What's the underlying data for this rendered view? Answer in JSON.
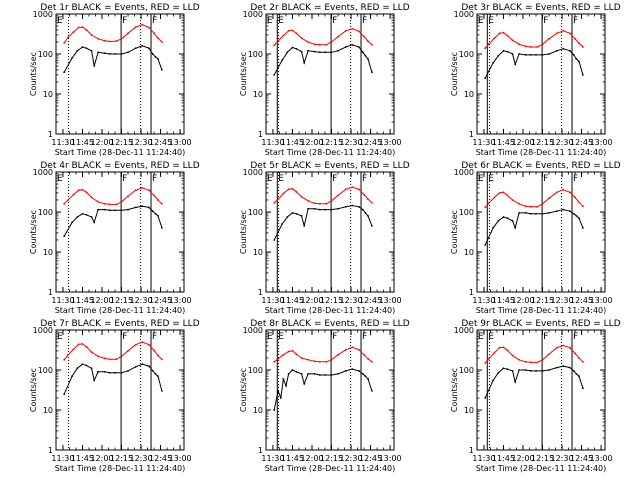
{
  "shared": {
    "xlabel": "Start Time (28-Dec-11 11:24:40)",
    "ylabel": "Counts/sec",
    "x_ticks": [
      "11:30",
      "11:45",
      "12:00",
      "12:15",
      "12:30",
      "12:45",
      "13:00"
    ],
    "y_ticks": [
      "1",
      "10",
      "100",
      "1000"
    ],
    "colors": {
      "events": "#000000",
      "lld": "#ff0000"
    }
  },
  "chart_data": [
    {
      "type": "line",
      "title": "Det 1r BLACK = Events, RED = LLD",
      "xlim": [
        "11:24:40",
        "13:03:00"
      ],
      "ylim": [
        1,
        1000
      ],
      "yscale": "log",
      "flags": [
        "E",
        "F",
        "F",
        "E"
      ],
      "series": [
        {
          "name": "Events",
          "x": [
            "11:31",
            "11:37",
            "11:41",
            "11:45",
            "11:48",
            "11:52",
            "11:54",
            "11:57",
            "12:02",
            "12:06",
            "12:10",
            "12:15",
            "12:20",
            "12:26",
            "12:31",
            "12:36",
            "12:39",
            "12:41",
            "12:43",
            "12:46"
          ],
          "values": [
            35,
            80,
            120,
            150,
            140,
            120,
            50,
            110,
            105,
            100,
            100,
            100,
            110,
            140,
            160,
            140,
            100,
            85,
            75,
            40
          ]
        },
        {
          "name": "LLD",
          "x": [
            "11:31",
            "11:34",
            "11:38",
            "11:42",
            "11:45",
            "11:48",
            "11:52",
            "11:57",
            "12:02",
            "12:06",
            "12:11",
            "12:15",
            "12:20",
            "12:26",
            "12:31",
            "12:36",
            "12:40",
            "12:43",
            "12:46"
          ],
          "values": [
            190,
            260,
            350,
            460,
            470,
            400,
            300,
            240,
            215,
            205,
            210,
            240,
            330,
            470,
            540,
            460,
            330,
            250,
            200
          ]
        }
      ]
    },
    {
      "type": "line",
      "title": "Det 2r BLACK = Events, RED = LLD",
      "xlim": [
        "11:24:40",
        "13:03:00"
      ],
      "ylim": [
        1,
        1000
      ],
      "yscale": "log",
      "flags": [
        "E",
        "F",
        "F",
        "E"
      ],
      "series": [
        {
          "name": "Events",
          "x": [
            "11:31",
            "11:37",
            "11:41",
            "11:45",
            "11:48",
            "11:52",
            "11:54",
            "11:57",
            "12:02",
            "12:06",
            "12:10",
            "12:15",
            "12:20",
            "12:26",
            "12:31",
            "12:36",
            "12:39",
            "12:41",
            "12:43",
            "12:46"
          ],
          "values": [
            30,
            70,
            110,
            145,
            135,
            115,
            60,
            120,
            115,
            110,
            110,
            110,
            120,
            150,
            170,
            150,
            110,
            90,
            75,
            35
          ]
        },
        {
          "name": "LLD",
          "x": [
            "11:31",
            "11:34",
            "11:38",
            "11:42",
            "11:45",
            "11:48",
            "11:52",
            "11:57",
            "12:02",
            "12:06",
            "12:11",
            "12:15",
            "12:20",
            "12:26",
            "12:31",
            "12:36",
            "12:40",
            "12:43",
            "12:46"
          ],
          "values": [
            165,
            210,
            290,
            380,
            390,
            330,
            250,
            200,
            175,
            170,
            170,
            200,
            270,
            380,
            430,
            370,
            270,
            210,
            170
          ]
        }
      ]
    },
    {
      "type": "line",
      "title": "Det 3r BLACK = Events, RED = LLD",
      "xlim": [
        "11:24:40",
        "13:03:00"
      ],
      "ylim": [
        1,
        1000
      ],
      "yscale": "log",
      "flags": [
        "E",
        "F",
        "F",
        "E"
      ],
      "series": [
        {
          "name": "Events",
          "x": [
            "11:31",
            "11:37",
            "11:41",
            "11:45",
            "11:48",
            "11:52",
            "11:54",
            "11:57",
            "12:02",
            "12:06",
            "12:10",
            "12:15",
            "12:20",
            "12:26",
            "12:31",
            "12:36",
            "12:39",
            "12:41",
            "12:43",
            "12:46"
          ],
          "values": [
            25,
            60,
            90,
            120,
            115,
            100,
            55,
            100,
            95,
            95,
            95,
            95,
            100,
            120,
            135,
            120,
            95,
            75,
            65,
            30
          ]
        },
        {
          "name": "LLD",
          "x": [
            "11:31",
            "11:34",
            "11:38",
            "11:42",
            "11:45",
            "11:48",
            "11:52",
            "11:57",
            "12:02",
            "12:06",
            "12:11",
            "12:15",
            "12:20",
            "12:26",
            "12:31",
            "12:36",
            "12:40",
            "12:43",
            "12:46"
          ],
          "values": [
            140,
            180,
            250,
            330,
            340,
            290,
            220,
            175,
            155,
            150,
            150,
            175,
            240,
            330,
            380,
            330,
            240,
            185,
            150
          ]
        }
      ]
    },
    {
      "type": "line",
      "title": "Det 4r BLACK = Events, RED = LLD",
      "xlim": [
        "11:24:40",
        "13:03:00"
      ],
      "ylim": [
        1,
        1000
      ],
      "yscale": "log",
      "flags": [
        "E",
        "F",
        "F",
        "E"
      ],
      "series": [
        {
          "name": "Events",
          "x": [
            "11:31",
            "11:37",
            "11:41",
            "11:45",
            "11:48",
            "11:52",
            "11:54",
            "11:57",
            "12:02",
            "12:06",
            "12:10",
            "12:15",
            "12:20",
            "12:26",
            "12:31",
            "12:36",
            "12:39",
            "12:41",
            "12:43",
            "12:46"
          ],
          "values": [
            25,
            55,
            75,
            90,
            85,
            75,
            55,
            115,
            115,
            110,
            110,
            110,
            115,
            130,
            140,
            130,
            105,
            90,
            80,
            40
          ]
        },
        {
          "name": "LLD",
          "x": [
            "11:31",
            "11:34",
            "11:38",
            "11:42",
            "11:45",
            "11:48",
            "11:52",
            "11:57",
            "12:02",
            "12:06",
            "12:11",
            "12:15",
            "12:20",
            "12:26",
            "12:31",
            "12:36",
            "12:40",
            "12:43",
            "12:46"
          ],
          "values": [
            160,
            200,
            270,
            350,
            360,
            310,
            230,
            180,
            160,
            155,
            155,
            180,
            250,
            350,
            400,
            350,
            260,
            200,
            160
          ]
        }
      ]
    },
    {
      "type": "line",
      "title": "Det 5r BLACK = Events, RED = LLD",
      "xlim": [
        "11:24:40",
        "13:03:00"
      ],
      "ylim": [
        1,
        1000
      ],
      "yscale": "log",
      "flags": [
        "E",
        "F",
        "F",
        "E"
      ],
      "series": [
        {
          "name": "Events",
          "x": [
            "11:31",
            "11:37",
            "11:41",
            "11:45",
            "11:48",
            "11:52",
            "11:54",
            "11:57",
            "12:02",
            "12:06",
            "12:10",
            "12:15",
            "12:20",
            "12:26",
            "12:31",
            "12:36",
            "12:39",
            "12:41",
            "12:43",
            "12:46"
          ],
          "values": [
            20,
            50,
            75,
            95,
            90,
            80,
            45,
            120,
            120,
            115,
            115,
            115,
            120,
            135,
            145,
            135,
            115,
            95,
            80,
            45
          ]
        },
        {
          "name": "LLD",
          "x": [
            "11:31",
            "11:34",
            "11:38",
            "11:42",
            "11:45",
            "11:48",
            "11:52",
            "11:57",
            "12:02",
            "12:06",
            "12:11",
            "12:15",
            "12:20",
            "12:26",
            "12:31",
            "12:36",
            "12:40",
            "12:43",
            "12:46"
          ],
          "values": [
            170,
            210,
            290,
            370,
            380,
            320,
            240,
            190,
            165,
            160,
            160,
            190,
            260,
            370,
            420,
            370,
            270,
            210,
            170
          ]
        }
      ]
    },
    {
      "type": "line",
      "title": "Det 6r BLACK = Events, RED = LLD",
      "xlim": [
        "11:24:40",
        "13:03:00"
      ],
      "ylim": [
        1,
        1000
      ],
      "yscale": "log",
      "flags": [
        "E",
        "F",
        "F",
        "E"
      ],
      "series": [
        {
          "name": "Events",
          "x": [
            "11:31",
            "11:37",
            "11:41",
            "11:45",
            "11:48",
            "11:52",
            "11:54",
            "11:57",
            "12:02",
            "12:06",
            "12:10",
            "12:15",
            "12:20",
            "12:26",
            "12:31",
            "12:36",
            "12:39",
            "12:41",
            "12:43",
            "12:46"
          ],
          "values": [
            15,
            40,
            60,
            75,
            70,
            60,
            40,
            95,
            95,
            90,
            90,
            90,
            95,
            105,
            115,
            105,
            90,
            80,
            70,
            40
          ]
        },
        {
          "name": "LLD",
          "x": [
            "11:31",
            "11:34",
            "11:38",
            "11:42",
            "11:45",
            "11:48",
            "11:52",
            "11:57",
            "12:02",
            "12:06",
            "12:11",
            "12:15",
            "12:20",
            "12:26",
            "12:31",
            "12:36",
            "12:40",
            "12:43",
            "12:46"
          ],
          "values": [
            130,
            170,
            230,
            300,
            310,
            260,
            200,
            160,
            140,
            135,
            135,
            160,
            220,
            310,
            360,
            310,
            230,
            175,
            140
          ]
        }
      ]
    },
    {
      "type": "line",
      "title": "Det 7r BLACK = Events, RED = LLD",
      "xlim": [
        "11:24:40",
        "13:03:00"
      ],
      "ylim": [
        1,
        1000
      ],
      "yscale": "log",
      "flags": [
        "E",
        "F",
        "F",
        "E"
      ],
      "series": [
        {
          "name": "Events",
          "x": [
            "11:31",
            "11:37",
            "11:41",
            "11:45",
            "11:48",
            "11:52",
            "11:54",
            "11:57",
            "12:02",
            "12:06",
            "12:10",
            "12:15",
            "12:20",
            "12:26",
            "12:31",
            "12:36",
            "12:39",
            "12:41",
            "12:43",
            "12:46"
          ],
          "values": [
            25,
            70,
            110,
            140,
            130,
            110,
            55,
            90,
            90,
            85,
            85,
            85,
            95,
            120,
            140,
            125,
            95,
            80,
            70,
            30
          ]
        },
        {
          "name": "LLD",
          "x": [
            "11:31",
            "11:34",
            "11:38",
            "11:42",
            "11:45",
            "11:48",
            "11:52",
            "11:57",
            "12:02",
            "12:06",
            "12:11",
            "12:15",
            "12:20",
            "12:26",
            "12:31",
            "12:36",
            "12:40",
            "12:43",
            "12:46"
          ],
          "values": [
            180,
            240,
            330,
            440,
            450,
            380,
            280,
            220,
            195,
            185,
            185,
            220,
            300,
            430,
            500,
            430,
            310,
            230,
            185
          ]
        }
      ]
    },
    {
      "type": "line",
      "title": "Det 8r BLACK = Events, RED = LLD",
      "xlim": [
        "11:24:40",
        "13:03:00"
      ],
      "ylim": [
        1,
        1000
      ],
      "yscale": "log",
      "flags": [
        "E",
        "F",
        "F",
        "E"
      ],
      "series": [
        {
          "name": "Events",
          "x": [
            "11:31",
            "11:34",
            "11:36",
            "11:38",
            "11:40",
            "11:42",
            "11:45",
            "11:48",
            "11:52",
            "11:54",
            "11:57",
            "12:02",
            "12:06",
            "12:10",
            "12:15",
            "12:20",
            "12:26",
            "12:31",
            "12:36",
            "12:39",
            "12:41",
            "12:43",
            "12:46"
          ],
          "values": [
            10,
            30,
            20,
            60,
            40,
            80,
            100,
            90,
            80,
            45,
            80,
            80,
            75,
            75,
            75,
            80,
            95,
            105,
            95,
            80,
            70,
            60,
            30
          ]
        },
        {
          "name": "LLD",
          "x": [
            "11:31",
            "11:34",
            "11:38",
            "11:42",
            "11:45",
            "11:48",
            "11:52",
            "11:57",
            "12:02",
            "12:06",
            "12:11",
            "12:15",
            "12:20",
            "12:26",
            "12:31",
            "12:36",
            "12:40",
            "12:43",
            "12:46"
          ],
          "values": [
            160,
            190,
            240,
            290,
            300,
            250,
            200,
            180,
            165,
            160,
            160,
            180,
            240,
            320,
            370,
            320,
            240,
            190,
            160
          ]
        }
      ]
    },
    {
      "type": "line",
      "title": "Det 9r BLACK = Events, RED = LLD",
      "xlim": [
        "11:24:40",
        "13:03:00"
      ],
      "ylim": [
        1,
        1000
      ],
      "yscale": "log",
      "flags": [
        "E",
        "F",
        "F",
        "E"
      ],
      "series": [
        {
          "name": "Events",
          "x": [
            "11:31",
            "11:37",
            "11:41",
            "11:45",
            "11:48",
            "11:52",
            "11:54",
            "11:57",
            "12:02",
            "12:06",
            "12:10",
            "12:15",
            "12:20",
            "12:26",
            "12:31",
            "12:36",
            "12:39",
            "12:41",
            "12:43",
            "12:46"
          ],
          "values": [
            20,
            55,
            85,
            110,
            105,
            95,
            50,
            100,
            100,
            95,
            95,
            95,
            100,
            115,
            125,
            115,
            95,
            80,
            70,
            35
          ]
        },
        {
          "name": "LLD",
          "x": [
            "11:31",
            "11:34",
            "11:38",
            "11:42",
            "11:45",
            "11:48",
            "11:52",
            "11:57",
            "12:02",
            "12:06",
            "12:11",
            "12:15",
            "12:20",
            "12:26",
            "12:31",
            "12:36",
            "12:40",
            "12:43",
            "12:46"
          ],
          "values": [
            150,
            195,
            270,
            360,
            370,
            310,
            230,
            180,
            160,
            155,
            155,
            180,
            250,
            360,
            410,
            360,
            260,
            200,
            160
          ]
        }
      ]
    }
  ]
}
